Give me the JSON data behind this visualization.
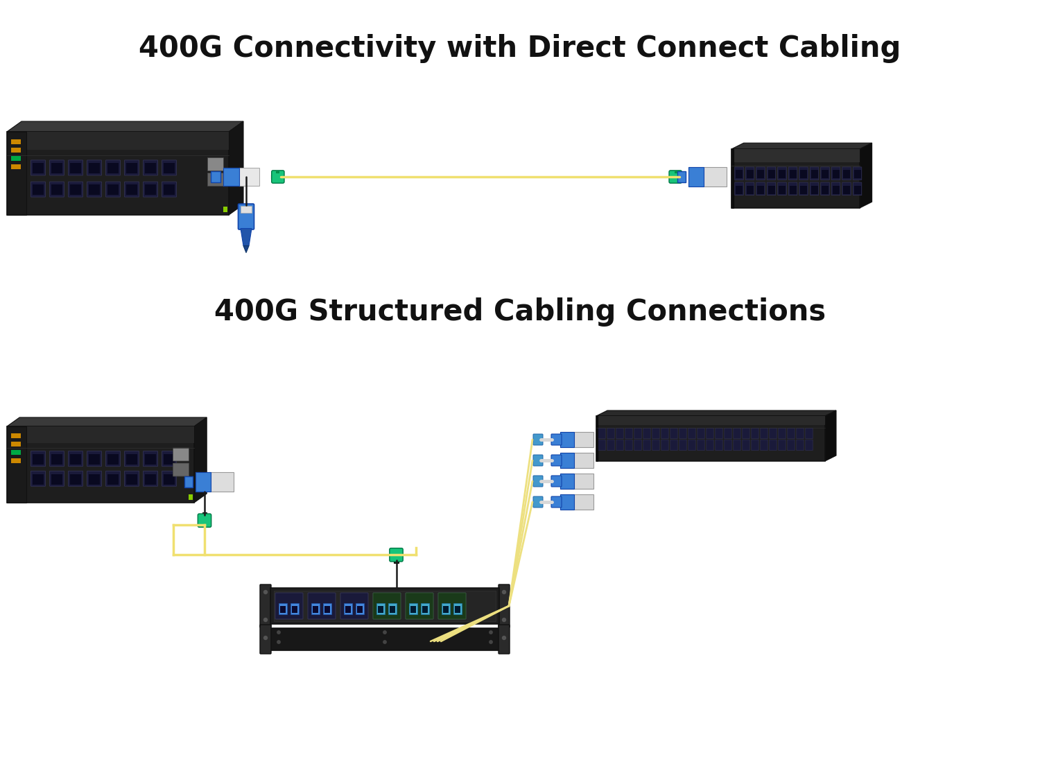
{
  "title1": "400G Connectivity with Direct Connect Cabling",
  "title2": "400G Structured Cabling Connections",
  "bg_color": "#ffffff",
  "title_fontsize": 30,
  "cable_yellow": "#f0e070",
  "cable_yellow2": "#ede080",
  "green_connector": "#18c47a",
  "blue_connector": "#3a7fd5",
  "dark_chassis": "#1e1e1e",
  "chassis_mid": "#282828",
  "chassis_face": "#222222",
  "port_blue": "#2255bb",
  "port_dark": "#1a1a3a",
  "port_light_blue": "#4488dd",
  "grey_light": "#cccccc",
  "grey_mid": "#888888",
  "switch_top_color": "#3a3a3a",
  "switch_side_color": "#141414",
  "rack_color": "#181818",
  "rack_front": "#252525"
}
